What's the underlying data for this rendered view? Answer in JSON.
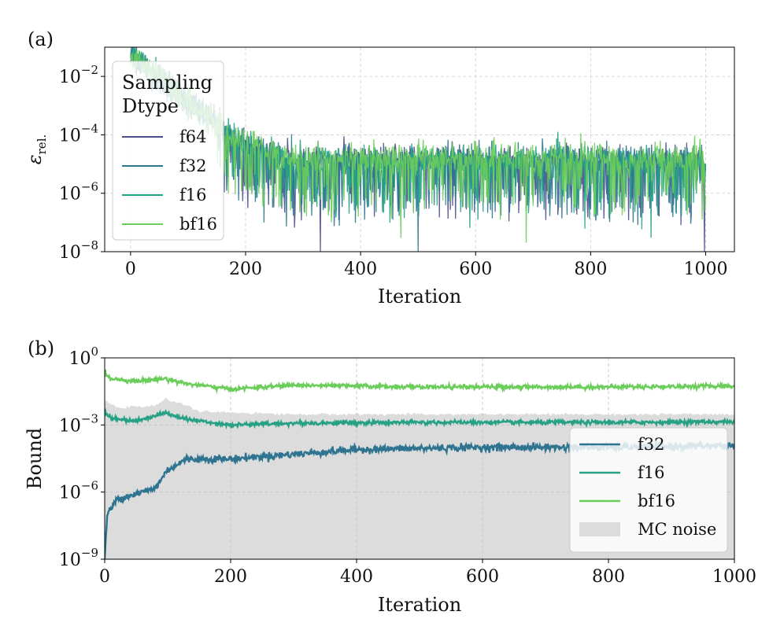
{
  "colors": {
    "f64": "#4a4f8c",
    "f32": "#2e7490",
    "f16": "#26a185",
    "bf16": "#6bcd5a",
    "mc_noise": "#dcdcdc",
    "grid": "#cfcfcf"
  },
  "chart_data": [
    {
      "panel_label": "(a)",
      "type": "line",
      "yscale": "log",
      "xlabel": "Iteration",
      "ylabel": "ε",
      "ylabel_sub": "rel.",
      "xlim": [
        -45,
        1050
      ],
      "ylim_exp": [
        -8,
        -1
      ],
      "xticks": [
        0,
        200,
        400,
        600,
        800,
        1000
      ],
      "xtick_labels": [
        "0",
        "200",
        "400",
        "600",
        "800",
        "1000"
      ],
      "yticks_exp": [
        -8,
        -6,
        -4,
        -2
      ],
      "ytick_labels": [
        "-8",
        "-6",
        "-4",
        "-2"
      ],
      "ytick_base": "10",
      "grid": true,
      "legend": {
        "title_line1": "Sampling",
        "title_line2": "Dtype",
        "placement": "top-left",
        "entries": [
          "f64",
          "f32",
          "f16",
          "bf16"
        ]
      },
      "series_description": "Relative error starts near 5e-2 at iteration 0, decays to ~1e-4 by iteration ~170, then plateaus around 1e-5 with noisy downward spikes to ~1e-7..1e-8 through iteration 1000.",
      "series": [
        {
          "name": "f64",
          "start": 0.05,
          "plateau": 1e-05,
          "spikes": [
            [
              330,
              1e-08
            ],
            [
              998,
              1e-08
            ]
          ]
        },
        {
          "name": "f32",
          "start": 0.05,
          "plateau": 1e-05,
          "spikes": [
            [
              232,
              1e-07
            ],
            [
              500,
              1e-08
            ]
          ]
        },
        {
          "name": "f16",
          "start": 0.05,
          "plateau": 1e-05,
          "spikes": [
            [
              380,
              2e-07
            ],
            [
              905,
              3e-08
            ]
          ]
        },
        {
          "name": "bf16",
          "start": 0.05,
          "plateau": 1.2e-05,
          "spikes": [
            [
              470,
              3e-08
            ],
            [
              688,
              2e-08
            ]
          ]
        }
      ]
    },
    {
      "panel_label": "(b)",
      "type": "line",
      "yscale": "log",
      "xlabel": "Iteration",
      "ylabel": "Bound",
      "xlim": [
        0,
        1000
      ],
      "ylim_exp": [
        -9,
        0
      ],
      "xticks": [
        0,
        200,
        400,
        600,
        800,
        1000
      ],
      "xtick_labels": [
        "0",
        "200",
        "400",
        "600",
        "800",
        "1000"
      ],
      "yticks_exp": [
        -9,
        -6,
        -3,
        0
      ],
      "ytick_labels": [
        "-9",
        "-6",
        "-3",
        "0"
      ],
      "ytick_base": "10",
      "grid": true,
      "legend": {
        "placement": "lower-right",
        "entries": [
          "f32",
          "f16",
          "bf16",
          "MC noise"
        ]
      },
      "series_description": "bf16 bound ~0.1-0.2 throughout; f16 bound ~1e-3 with bump near 100; f32 bound rises from ~1e-8 to ~1e-6 by 80, ~1e-5 at 150, ~1e-4 by 600; MC noise shaded band from 1e-9 up to ~3e-3 (1e-2 early).",
      "series": [
        {
          "name": "bf16",
          "points": [
            [
              0,
              0.2
            ],
            [
              10,
              0.12
            ],
            [
              50,
              0.09
            ],
            [
              95,
              0.12
            ],
            [
              130,
              0.07
            ],
            [
              200,
              0.04
            ],
            [
              300,
              0.06
            ],
            [
              500,
              0.05
            ],
            [
              800,
              0.05
            ],
            [
              1000,
              0.055
            ]
          ]
        },
        {
          "name": "f16",
          "points": [
            [
              0,
              0.004
            ],
            [
              10,
              0.002
            ],
            [
              50,
              0.0015
            ],
            [
              95,
              0.0035
            ],
            [
              130,
              0.0018
            ],
            [
              200,
              0.001
            ],
            [
              300,
              0.0012
            ],
            [
              500,
              0.0013
            ],
            [
              800,
              0.0013
            ],
            [
              1000,
              0.0014
            ]
          ]
        },
        {
          "name": "f32",
          "points": [
            [
              0,
              1e-09
            ],
            [
              4,
              1e-07
            ],
            [
              20,
              5e-07
            ],
            [
              60,
              1e-06
            ],
            [
              80,
              1.5e-06
            ],
            [
              100,
              1e-05
            ],
            [
              130,
              3e-05
            ],
            [
              200,
              3e-05
            ],
            [
              300,
              5e-05
            ],
            [
              400,
              8e-05
            ],
            [
              600,
              0.0001
            ],
            [
              800,
              0.0001
            ],
            [
              1000,
              0.00012
            ]
          ]
        },
        {
          "name": "MC noise",
          "points": [
            [
              0,
              0.012
            ],
            [
              20,
              0.006
            ],
            [
              80,
              0.007
            ],
            [
              95,
              0.014
            ],
            [
              120,
              0.01
            ],
            [
              150,
              0.004
            ],
            [
              300,
              0.003
            ],
            [
              1000,
              0.003
            ]
          ]
        }
      ]
    }
  ]
}
